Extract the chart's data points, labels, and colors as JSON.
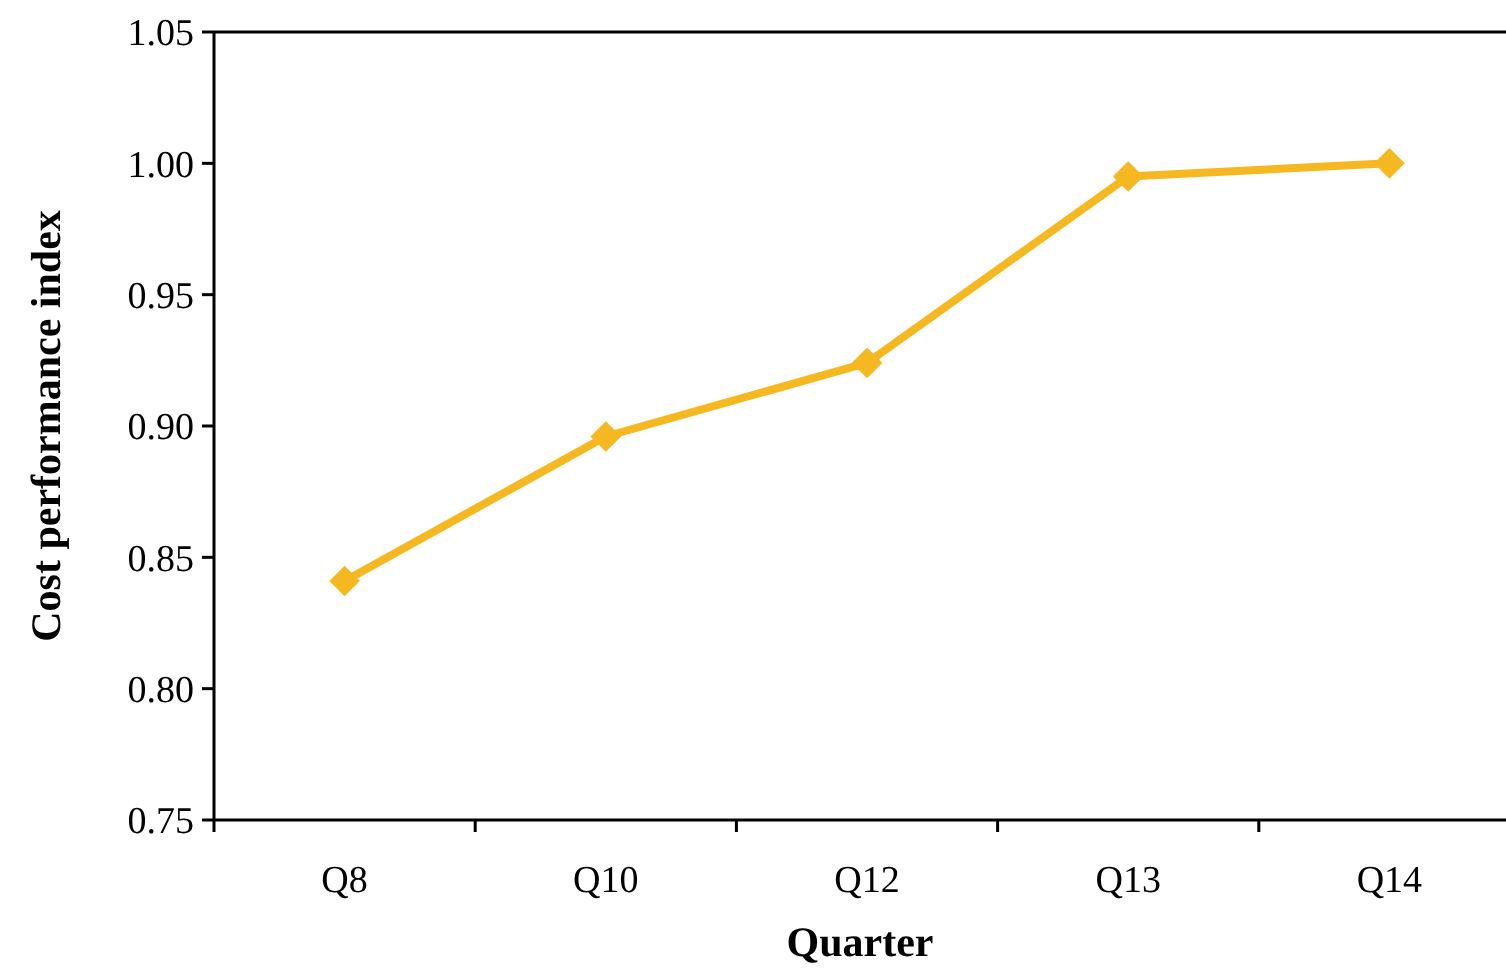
{
  "chart_data": {
    "type": "line",
    "xlabel": "Quarter",
    "ylabel": "Cost performance index",
    "categories": [
      "Q8",
      "Q10",
      "Q12",
      "Q13",
      "Q14"
    ],
    "series": [
      {
        "color": "#f5b820",
        "values": [
          0.841,
          0.896,
          0.924,
          0.995,
          1.0
        ]
      }
    ],
    "ylim": [
      0.75,
      1.05
    ],
    "yticks": [
      {
        "value": 0.75,
        "label": "0.75"
      },
      {
        "value": 0.8,
        "label": "0.80"
      },
      {
        "value": 0.85,
        "label": "0.85"
      },
      {
        "value": 0.9,
        "label": "0.90"
      },
      {
        "value": 0.95,
        "label": "0.95"
      },
      {
        "value": 1.0,
        "label": "1.00"
      },
      {
        "value": 1.05,
        "label": "1.05"
      }
    ],
    "grid": false,
    "marker": "diamond",
    "line_style": "solid"
  }
}
